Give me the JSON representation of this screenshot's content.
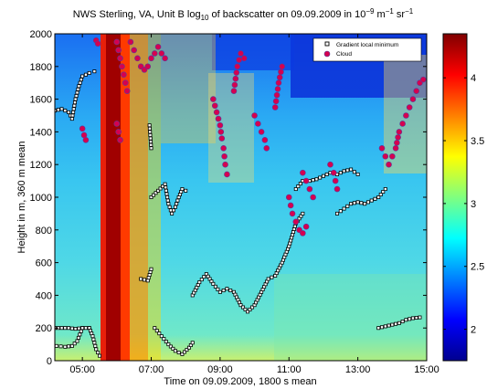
{
  "chart_data": {
    "type": "heatmap",
    "title": {
      "prefix": "NWS Sterling, VA, Unit B log",
      "prefix_sub": "10",
      "middle": " of backscatter on 09.09.2009 in 10",
      "exp1": "−9",
      "unit1": " m",
      "exp2": "−1",
      "unit2": " sr",
      "exp3": "−1"
    },
    "xlabel": "Time on 09.09.2009, 1800 s mean",
    "ylabel": "Height in m, 360 m mean",
    "xlim": [
      4.2,
      15.0
    ],
    "ylim": [
      0,
      2000
    ],
    "x_ticks": [
      {
        "value": 5,
        "label": "05:00"
      },
      {
        "value": 7,
        "label": "07:00"
      },
      {
        "value": 9,
        "label": "09:00"
      },
      {
        "value": 11,
        "label": "11:00"
      },
      {
        "value": 13,
        "label": "13:00"
      },
      {
        "value": 15,
        "label": "15:00"
      }
    ],
    "y_ticks": [
      0,
      200,
      400,
      600,
      800,
      1000,
      1200,
      1400,
      1600,
      1800,
      2000
    ],
    "colorbar": {
      "range": [
        1.75,
        4.35
      ],
      "ticks": [
        2,
        2.5,
        3,
        3.5,
        4
      ],
      "tick_labels": [
        "2",
        "2.5",
        "3",
        "3.5",
        "4"
      ],
      "colormap": "jet"
    },
    "legend": {
      "placement": "top-right",
      "entries": [
        {
          "label": "Gradient local minimum",
          "marker": "open-square",
          "color": "#000000"
        },
        {
          "label": "Cloud",
          "marker": "filled-circle",
          "color": "#d6004f"
        }
      ]
    },
    "series": [
      {
        "name": "Gradient local minimum",
        "segments": [
          [
            [
              4.2,
              1530
            ],
            [
              4.4,
              1540
            ],
            [
              4.6,
              1520
            ],
            [
              4.7,
              1480
            ],
            [
              4.8,
              1600
            ],
            [
              4.9,
              1680
            ],
            [
              5.0,
              1740
            ],
            [
              5.2,
              1760
            ],
            [
              5.35,
              1770
            ]
          ],
          [
            [
              4.2,
              200
            ],
            [
              4.4,
              200
            ],
            [
              4.6,
              200
            ],
            [
              4.8,
              195
            ],
            [
              5.0,
              200
            ],
            [
              5.2,
              200
            ]
          ],
          [
            [
              4.25,
              90
            ],
            [
              4.5,
              85
            ],
            [
              4.7,
              90
            ],
            [
              4.85,
              120
            ],
            [
              5.0,
              200
            ]
          ],
          [
            [
              5.2,
              200
            ],
            [
              5.3,
              150
            ],
            [
              5.4,
              70
            ],
            [
              5.5,
              30
            ]
          ],
          [
            [
              6.95,
              1440
            ],
            [
              7.0,
              1300
            ]
          ],
          [
            [
              6.7,
              500
            ],
            [
              6.9,
              490
            ],
            [
              7.0,
              560
            ]
          ],
          [
            [
              7.1,
              200
            ],
            [
              7.3,
              150
            ],
            [
              7.5,
              100
            ],
            [
              7.7,
              60
            ],
            [
              7.9,
              40
            ],
            [
              8.1,
              80
            ],
            [
              8.2,
              110
            ]
          ],
          [
            [
              7.0,
              1000
            ],
            [
              7.2,
              1040
            ],
            [
              7.4,
              1080
            ],
            [
              7.5,
              960
            ],
            [
              7.6,
              900
            ],
            [
              7.7,
              940
            ],
            [
              7.8,
              1000
            ],
            [
              7.9,
              1050
            ],
            [
              8.0,
              1040
            ]
          ],
          [
            [
              8.2,
              400
            ],
            [
              8.4,
              480
            ],
            [
              8.6,
              530
            ],
            [
              8.8,
              470
            ],
            [
              9.0,
              420
            ],
            [
              9.2,
              440
            ],
            [
              9.4,
              420
            ],
            [
              9.6,
              340
            ],
            [
              9.8,
              300
            ],
            [
              10.0,
              340
            ],
            [
              10.2,
              420
            ],
            [
              10.4,
              500
            ],
            [
              10.6,
              520
            ],
            [
              10.8,
              600
            ],
            [
              11.0,
              700
            ],
            [
              11.2,
              840
            ],
            [
              11.4,
              900
            ]
          ],
          [
            [
              11.2,
              1050
            ],
            [
              11.4,
              1100
            ],
            [
              11.6,
              1100
            ],
            [
              11.8,
              1110
            ],
            [
              12.0,
              1130
            ],
            [
              12.2,
              1150
            ],
            [
              12.4,
              1140
            ],
            [
              12.6,
              1160
            ],
            [
              12.8,
              1170
            ],
            [
              13.0,
              1140
            ]
          ],
          [
            [
              12.4,
              900
            ],
            [
              12.6,
              930
            ],
            [
              12.8,
              960
            ],
            [
              13.0,
              970
            ],
            [
              13.2,
              960
            ],
            [
              13.4,
              980
            ],
            [
              13.6,
              1000
            ],
            [
              13.8,
              1050
            ]
          ],
          [
            [
              13.6,
              200
            ],
            [
              13.8,
              210
            ],
            [
              14.0,
              220
            ],
            [
              14.2,
              230
            ],
            [
              14.4,
              250
            ],
            [
              14.6,
              260
            ],
            [
              14.8,
              265
            ]
          ]
        ]
      },
      {
        "name": "Cloud",
        "segments": [
          [
            [
              5.0,
              1420
            ],
            [
              5.05,
              1380
            ],
            [
              5.1,
              1350
            ]
          ],
          [
            [
              5.4,
              1960
            ],
            [
              5.45,
              1940
            ]
          ],
          [
            [
              6.0,
              1950
            ],
            [
              6.05,
              1900
            ],
            [
              6.1,
              1850
            ],
            [
              6.15,
              1800
            ],
            [
              6.2,
              1750
            ],
            [
              6.25,
              1700
            ],
            [
              6.3,
              1650
            ]
          ],
          [
            [
              6.0,
              1450
            ],
            [
              6.05,
              1400
            ],
            [
              6.1,
              1350
            ]
          ],
          [
            [
              6.4,
              1950
            ],
            [
              6.5,
              1900
            ],
            [
              6.6,
              1850
            ],
            [
              6.7,
              1800
            ],
            [
              6.8,
              1780
            ],
            [
              6.9,
              1800
            ],
            [
              7.0,
              1850
            ],
            [
              7.1,
              1880
            ]
          ],
          [
            [
              7.2,
              1920
            ],
            [
              7.3,
              1880
            ],
            [
              7.4,
              1850
            ]
          ],
          [
            [
              8.8,
              1600
            ],
            [
              8.9,
              1520
            ],
            [
              9.0,
              1440
            ],
            [
              9.05,
              1360
            ],
            [
              9.1,
              1300
            ],
            [
              9.15,
              1200
            ],
            [
              9.2,
              1140
            ]
          ],
          [
            [
              9.4,
              1650
            ],
            [
              9.5,
              1800
            ],
            [
              9.6,
              1880
            ],
            [
              9.7,
              1850
            ]
          ],
          [
            [
              10.0,
              1500
            ],
            [
              10.1,
              1450
            ],
            [
              10.2,
              1400
            ],
            [
              10.3,
              1350
            ],
            [
              10.35,
              1300
            ]
          ],
          [
            [
              10.6,
              1550
            ],
            [
              10.7,
              1700
            ],
            [
              10.8,
              1800
            ]
          ],
          [
            [
              11.0,
              1000
            ],
            [
              11.05,
              950
            ],
            [
              11.1,
              900
            ],
            [
              11.2,
              850
            ],
            [
              11.3,
              800
            ],
            [
              11.4,
              780
            ],
            [
              11.5,
              820
            ]
          ],
          [
            [
              11.4,
              1150
            ],
            [
              11.5,
              1100
            ],
            [
              11.6,
              1050
            ],
            [
              11.7,
              1000
            ]
          ],
          [
            [
              12.2,
              1200
            ],
            [
              12.3,
              1150
            ],
            [
              12.35,
              1100
            ],
            [
              12.4,
              1050
            ]
          ],
          [
            [
              13.7,
              1300
            ],
            [
              13.8,
              1250
            ],
            [
              13.9,
              1200
            ],
            [
              14.0,
              1250
            ],
            [
              14.1,
              1300
            ],
            [
              14.2,
              1400
            ],
            [
              14.3,
              1450
            ],
            [
              14.4,
              1500
            ],
            [
              14.5,
              1550
            ],
            [
              14.6,
              1600
            ],
            [
              14.7,
              1650
            ],
            [
              14.8,
              1700
            ],
            [
              14.9,
              1720
            ]
          ]
        ]
      }
    ]
  }
}
